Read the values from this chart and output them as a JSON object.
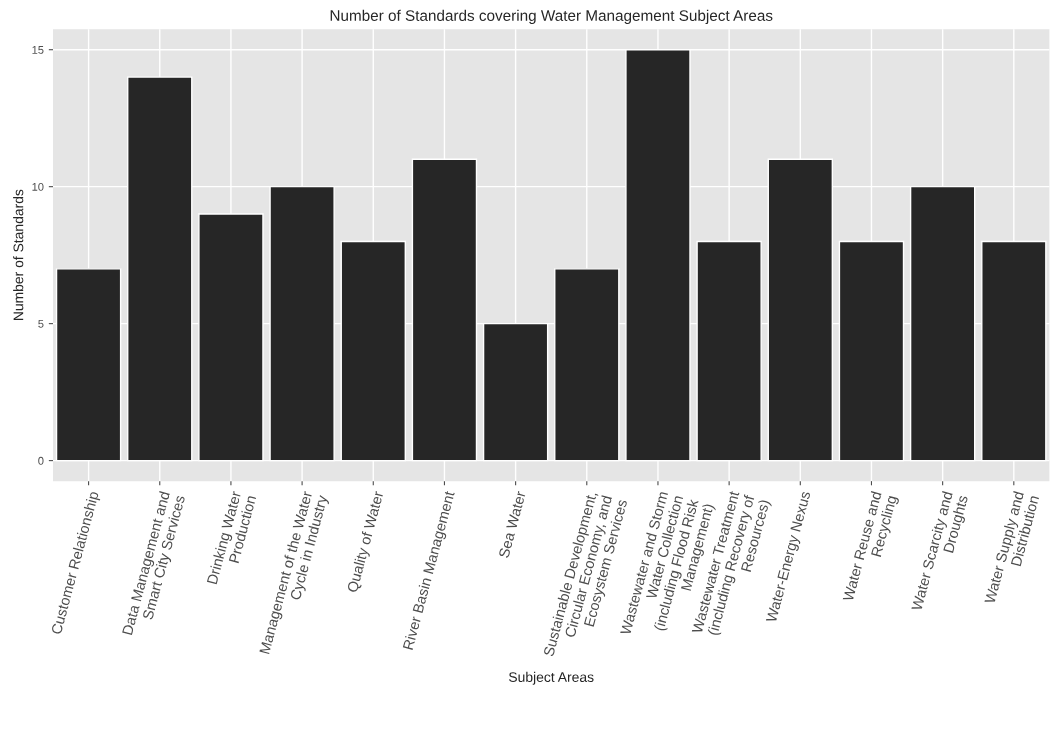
{
  "chart_data": {
    "type": "bar",
    "title": "Number of Standards covering Water Management Subject Areas",
    "xlabel": "Subject Areas",
    "ylabel": "Number of Standards",
    "categories": [
      "Customer Relationship",
      "Data Management and\nSmart City Services",
      "Drinking Water\nProduction",
      "Management of the Water\nCycle in Industry",
      "Quality of Water",
      "River Basin Management",
      "Sea Water",
      "Sustainable Development,\nCircular Economy, and\nEcosystem Services",
      "Wastewater and Storm\nWater Collection\n(including Flood Risk\nManagement)",
      "Wastewater Treatment\n(including Recovery of\nResources)",
      "Water-Energy Nexus",
      "Water Reuse and\nRecycling",
      "Water Scarcity and\nDroughts",
      "Water Supply and\nDistribution"
    ],
    "values": [
      7,
      14,
      9,
      10,
      8,
      11,
      5,
      7,
      15,
      8,
      11,
      8,
      10,
      8
    ],
    "color": "#262626",
    "ylim": [
      -0.75,
      15.75
    ],
    "yticks": [
      0,
      5,
      10,
      15
    ],
    "grid": true
  }
}
